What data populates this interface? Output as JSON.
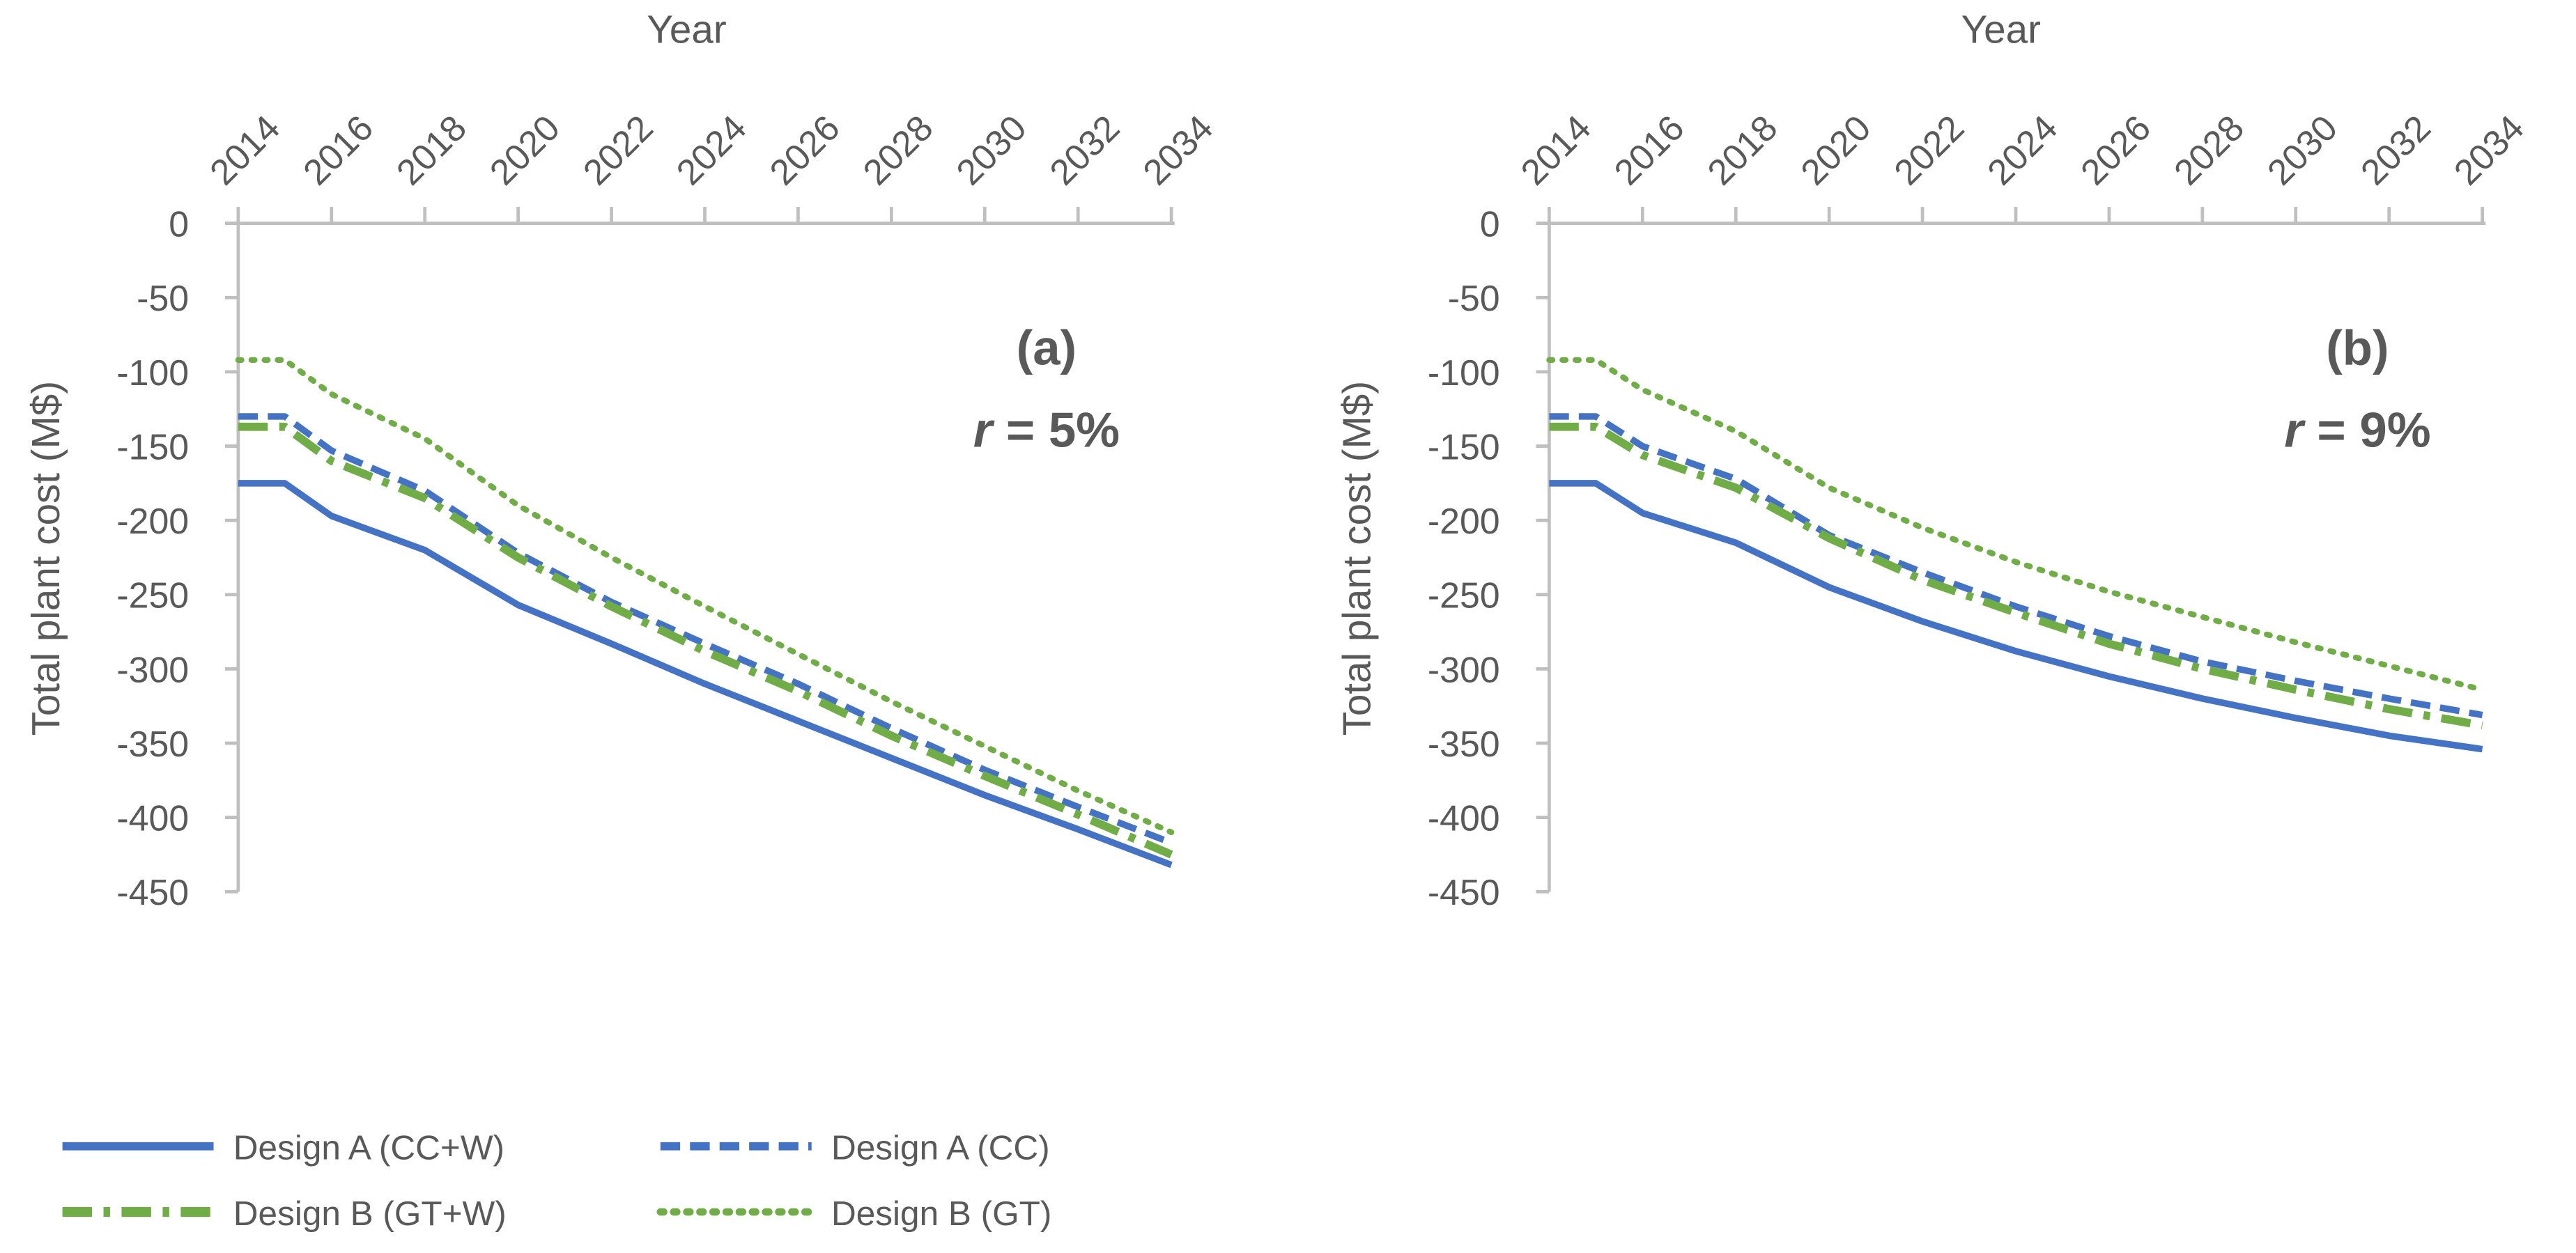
{
  "chart_data": [
    {
      "type": "line",
      "panel_label": "(a)",
      "annotation_var": "r",
      "annotation_value": " = 5%",
      "xlabel": "Year",
      "ylabel": "Total plant cost (M$)",
      "xlim": [
        2014,
        2034
      ],
      "ylim": [
        -450,
        0
      ],
      "x_ticks": [
        "2014",
        "2016",
        "2018",
        "2020",
        "2022",
        "2024",
        "2026",
        "2028",
        "2030",
        "2032",
        "2034"
      ],
      "y_ticks": [
        "0",
        "-50",
        "-100",
        "-150",
        "-200",
        "-250",
        "-300",
        "-350",
        "-400",
        "-450"
      ],
      "x": [
        2014,
        2015,
        2016,
        2018,
        2020,
        2022,
        2024,
        2026,
        2028,
        2030,
        2032,
        2034
      ],
      "series": [
        {
          "name": "Design A (CC+W)",
          "values": [
            -175,
            -175,
            -197,
            -220,
            -257,
            -283,
            -310,
            -335,
            -360,
            -385,
            -408,
            -432
          ]
        },
        {
          "name": "Design A (CC)",
          "values": [
            -130,
            -130,
            -153,
            -180,
            -222,
            -255,
            -283,
            -310,
            -340,
            -368,
            -393,
            -417
          ]
        },
        {
          "name": "Design B (GT+W)",
          "values": [
            -137,
            -137,
            -160,
            -185,
            -225,
            -258,
            -288,
            -315,
            -345,
            -372,
            -398,
            -425
          ]
        },
        {
          "name": "Design B (GT)",
          "values": [
            -92,
            -92,
            -115,
            -145,
            -190,
            -225,
            -258,
            -290,
            -322,
            -352,
            -382,
            -410
          ]
        }
      ]
    },
    {
      "type": "line",
      "panel_label": "(b)",
      "annotation_var": "r",
      "annotation_value": " = 9%",
      "xlabel": "Year",
      "ylabel": "Total plant cost (M$)",
      "xlim": [
        2014,
        2034
      ],
      "ylim": [
        -450,
        0
      ],
      "x_ticks": [
        "2014",
        "2016",
        "2018",
        "2020",
        "2022",
        "2024",
        "2026",
        "2028",
        "2030",
        "2032",
        "2034"
      ],
      "y_ticks": [
        "0",
        "-50",
        "-100",
        "-150",
        "-200",
        "-250",
        "-300",
        "-350",
        "-400",
        "-450"
      ],
      "x": [
        2014,
        2015,
        2016,
        2018,
        2020,
        2022,
        2024,
        2026,
        2028,
        2030,
        2032,
        2034
      ],
      "series": [
        {
          "name": "Design A (CC+W)",
          "values": [
            -175,
            -175,
            -195,
            -215,
            -245,
            -268,
            -288,
            -305,
            -320,
            -333,
            -345,
            -354
          ]
        },
        {
          "name": "Design A (CC)",
          "values": [
            -130,
            -130,
            -150,
            -172,
            -210,
            -235,
            -258,
            -278,
            -295,
            -308,
            -320,
            -331
          ]
        },
        {
          "name": "Design B (GT+W)",
          "values": [
            -137,
            -137,
            -156,
            -178,
            -212,
            -240,
            -262,
            -283,
            -300,
            -314,
            -327,
            -338
          ]
        },
        {
          "name": "Design B (GT)",
          "values": [
            -92,
            -92,
            -112,
            -140,
            -178,
            -205,
            -228,
            -248,
            -265,
            -282,
            -298,
            -314
          ]
        }
      ]
    }
  ],
  "legend": [
    {
      "label": "Design A (CC+W)",
      "color": "#4472C4",
      "style": "solid"
    },
    {
      "label": "Design A (CC)",
      "color": "#4472C4",
      "style": "dash"
    },
    {
      "label": "Design B (GT+W)",
      "color": "#70AD47",
      "style": "dashdot"
    },
    {
      "label": "Design B (GT)",
      "color": "#70AD47",
      "style": "dot"
    }
  ]
}
